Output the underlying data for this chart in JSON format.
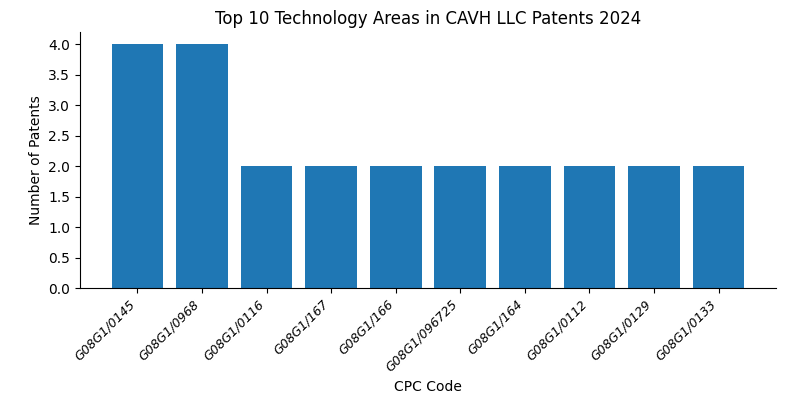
{
  "title": "Top 10 Technology Areas in CAVH LLC Patents 2024",
  "xlabel": "CPC Code",
  "ylabel": "Number of Patents",
  "categories": [
    "G08G1/0145",
    "G08G1/0968",
    "G08G1/0116",
    "G08G1/167",
    "G08G1/166",
    "G08G1/096725",
    "G08G1/164",
    "G08G1/0112",
    "G08G1/0129",
    "G08G1/0133"
  ],
  "values": [
    4,
    4,
    2,
    2,
    2,
    2,
    2,
    2,
    2,
    2
  ],
  "bar_color": "#1f77b4",
  "ylim": [
    0,
    4.2
  ],
  "yticks": [
    0.0,
    0.5,
    1.0,
    1.5,
    2.0,
    2.5,
    3.0,
    3.5,
    4.0
  ],
  "figsize": [
    8.0,
    4.0
  ],
  "dpi": 100,
  "title_fontsize": 12,
  "axis_label_fontsize": 10,
  "tick_fontsize": 9
}
